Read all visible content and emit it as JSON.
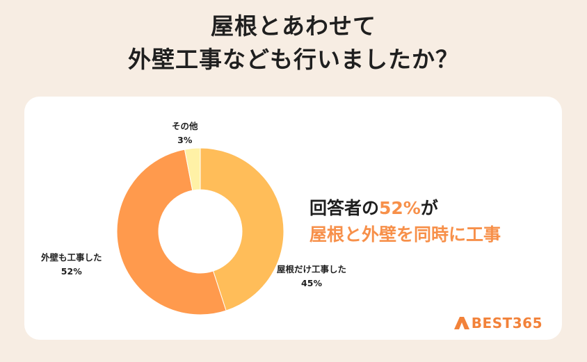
{
  "title": {
    "line1": "屋根とあわせて",
    "line2": "外壁工事なども行いましたか？"
  },
  "headline": {
    "prefix": "回答者の",
    "highlight": "52%",
    "suffix": "が",
    "line2": "屋根と外壁を同時に工事"
  },
  "logo": {
    "text": "BEST365"
  },
  "colors": {
    "background": "#f7ede3",
    "accent": "#f7904a",
    "slice_roof_only": "#ffbd59",
    "slice_wall_also": "#ff9a4d",
    "slice_other": "#fff1a6"
  },
  "chart_data": {
    "type": "pie",
    "donut": true,
    "slices": [
      {
        "label": "屋根だけ工事した",
        "value": 45,
        "display": "45%",
        "color": "#ffbd59"
      },
      {
        "label": "外壁も工事した",
        "value": 52,
        "display": "52%",
        "color": "#ff9a4d"
      },
      {
        "label": "その他",
        "value": 3,
        "display": "3%",
        "color": "#fff1a6"
      }
    ]
  }
}
